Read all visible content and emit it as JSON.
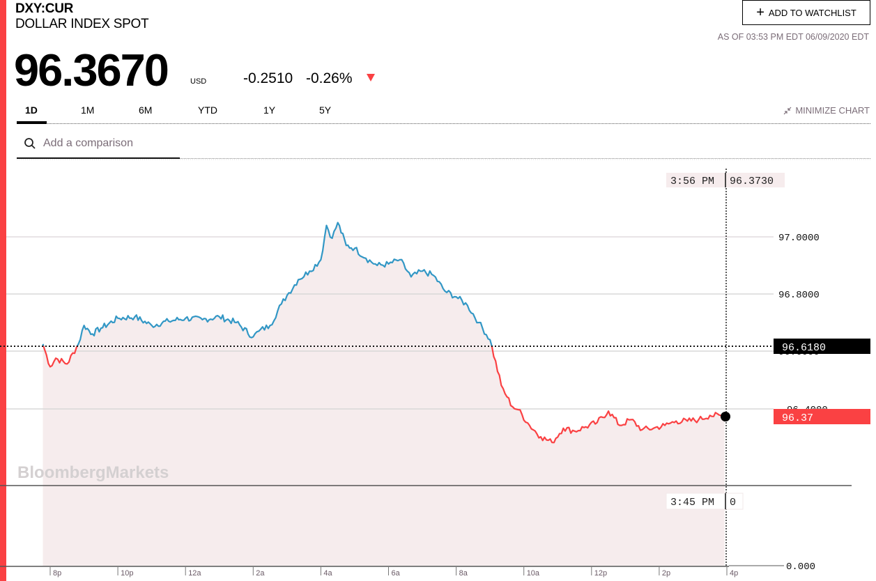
{
  "header": {
    "ticker": "DXY:CUR",
    "name": "DOLLAR INDEX SPOT",
    "price": "96.3670",
    "currency": "USD",
    "change": "-0.2510",
    "change_pct": "-0.26%",
    "direction_icon": "down-triangle-icon",
    "watchlist_label": "ADD TO WATCHLIST",
    "as_of": "AS OF 03:53 PM EDT 06/09/2020 EDT"
  },
  "tabs": [
    {
      "label": "1D",
      "active": true
    },
    {
      "label": "1M",
      "active": false
    },
    {
      "label": "6M",
      "active": false
    },
    {
      "label": "YTD",
      "active": false
    },
    {
      "label": "1Y",
      "active": false
    },
    {
      "label": "5Y",
      "active": false
    }
  ],
  "minimize_label": "MINIMIZE CHART",
  "comparison": {
    "placeholder": "Add a comparison"
  },
  "watermark": "BloombergMarkets",
  "crosshair": {
    "top_time": "3:56 PM",
    "top_value": "96.3730",
    "bottom_time": "3:45 PM",
    "bottom_value": "0"
  },
  "labels": {
    "prev_close": "96.6180",
    "last": "96.37"
  },
  "colors": {
    "accent_red": "#fa4143",
    "up_blue": "#3297c5",
    "fill": "#f6eced",
    "prev_close_bg": "#000000"
  },
  "chart_data": {
    "type": "line",
    "title": "DXY:CUR Dollar Index Spot — 1D",
    "xlabel": "",
    "ylabel": "",
    "x_ticks": [
      "8p",
      "10p",
      "12a",
      "2a",
      "4a",
      "6a",
      "8a",
      "10a",
      "12p",
      "2p",
      "4p"
    ],
    "y_ticks": [
      "97.0000",
      "96.8000",
      "96.6000",
      "96.4000"
    ],
    "lower_pane_y_tick": "0.000",
    "ylim": [
      96.1,
      97.1
    ],
    "previous_close": 96.618,
    "last_value": 96.367,
    "grid": true,
    "series": [
      {
        "name": "DXY",
        "x": [
          "7:47p",
          "8:00p",
          "8:10p",
          "8:30p",
          "8:50p",
          "9:00p",
          "9:15p",
          "9:30p",
          "10:00p",
          "10:30p",
          "11:00p",
          "11:30p",
          "12:00a",
          "12:30a",
          "1:00a",
          "1:30a",
          "2:00a",
          "2:10a",
          "2:30a",
          "2:50a",
          "3:00a",
          "3:20a",
          "3:40a",
          "4:00a",
          "4:10a",
          "4:20a",
          "4:30a",
          "4:45a",
          "5:00a",
          "5:20a",
          "5:40a",
          "6:00a",
          "6:20a",
          "6:40a",
          "7:00a",
          "7:20a",
          "7:40a",
          "8:00a",
          "8:20a",
          "8:40a",
          "9:00a",
          "9:20a",
          "9:30a",
          "9:40a",
          "9:50a",
          "10:10a",
          "10:30a",
          "10:50a",
          "11:10a",
          "11:30a",
          "11:50a",
          "12:10p",
          "12:30p",
          "12:50p",
          "1:10p",
          "1:30p",
          "1:50p",
          "2:10p",
          "2:30p",
          "2:50p",
          "3:10p",
          "3:30p",
          "3:56p"
        ],
        "values": [
          96.625,
          96.545,
          96.575,
          96.555,
          96.625,
          96.69,
          96.66,
          96.68,
          96.715,
          96.72,
          96.69,
          96.705,
          96.715,
          96.71,
          96.72,
          96.7,
          96.65,
          96.67,
          96.69,
          96.765,
          96.795,
          96.85,
          96.88,
          96.92,
          97.04,
          96.995,
          97.05,
          96.97,
          96.96,
          96.925,
          96.9,
          96.905,
          96.92,
          96.86,
          96.88,
          96.865,
          96.81,
          96.79,
          96.76,
          96.7,
          96.64,
          96.48,
          96.44,
          96.405,
          96.395,
          96.34,
          96.3,
          96.28,
          96.33,
          96.32,
          96.335,
          96.35,
          96.39,
          96.34,
          96.36,
          96.325,
          96.33,
          96.34,
          96.355,
          96.355,
          96.36,
          96.375,
          96.373
        ]
      }
    ]
  }
}
